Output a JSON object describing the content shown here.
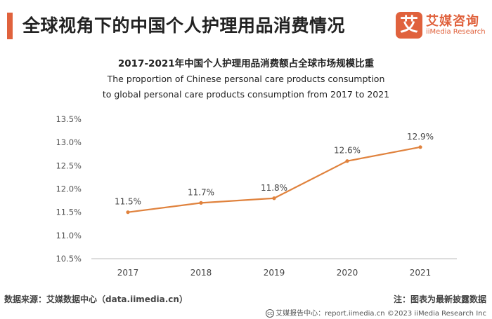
{
  "header": {
    "title": "全球视角下的中国个人护理用品消费情况"
  },
  "logo": {
    "mark": "艾",
    "name_cn": "艾媒咨询",
    "name_en": "iiMedia Research"
  },
  "chart_data": {
    "type": "line",
    "title": "2017-2021年中国个人护理用品消费额占全球市场规模比重",
    "subtitle_line1": "The proportion of Chinese personal care products consumption",
    "subtitle_line2": "to global personal care products consumption from 2017 to 2021",
    "categories": [
      "2017",
      "2018",
      "2019",
      "2020",
      "2021"
    ],
    "values": [
      11.5,
      11.7,
      11.8,
      12.6,
      12.9
    ],
    "value_labels": [
      "11.5%",
      "11.7%",
      "11.8%",
      "12.6%",
      "12.9%"
    ],
    "y_ticks": [
      "13.5%",
      "13.0%",
      "12.5%",
      "12.0%",
      "11.5%",
      "11.0%",
      "10.5%"
    ],
    "ylim": [
      10.5,
      13.5
    ],
    "grid": false,
    "line_color": "#e0823d"
  },
  "footer": {
    "source": "数据来源：艾媒数据中心（data.iimedia.cn）",
    "note": "注：图表为最新披露数据",
    "bottom_icon": "cc",
    "bottom": "艾媒报告中心：report.iimedia.cn  ©2023  iiMedia Research  Inc"
  }
}
